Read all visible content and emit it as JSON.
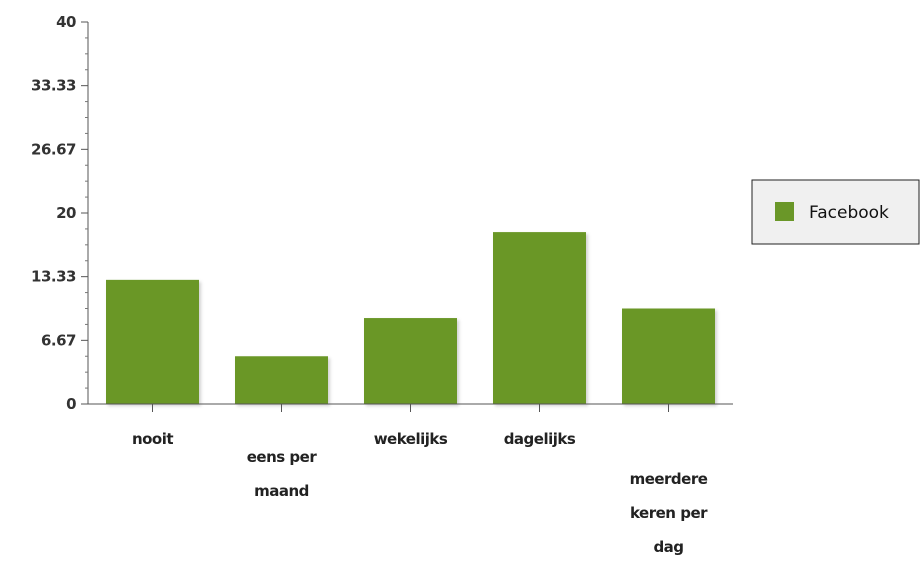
{
  "chart_data": {
    "type": "bar",
    "categories": [
      "nooit",
      "eens per maand",
      "wekelijks",
      "dagelijks",
      "meerdere keren per dag"
    ],
    "category_lines": [
      [
        "nooit"
      ],
      [
        "eens per",
        "maand"
      ],
      [
        "wekelijks"
      ],
      [
        "dagelijks"
      ],
      [
        "meerdere",
        "keren per",
        "dag"
      ]
    ],
    "series": [
      {
        "name": "Facebook",
        "values": [
          13,
          5,
          9,
          18,
          10
        ],
        "color": "#6a9728"
      }
    ],
    "ylim": [
      0,
      40
    ],
    "yticks": [
      "0",
      "6.67",
      "13.33",
      "20",
      "26.67",
      "33.33",
      "40"
    ],
    "grid": false,
    "legend_position": "right"
  }
}
